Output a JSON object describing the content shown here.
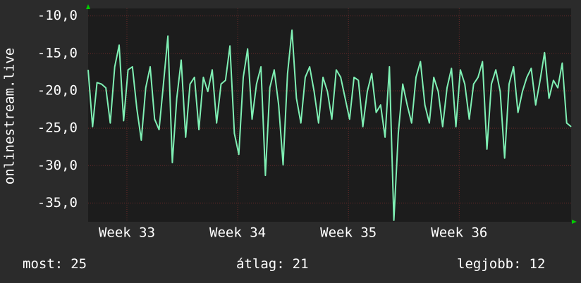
{
  "chart_data": {
    "type": "line",
    "y_label": "onlinestream.live",
    "color": "#7ff0b4",
    "grid": true,
    "xlim": [
      32.65,
      37.01
    ],
    "xticks": [
      {
        "value": 33,
        "label": "Week 33"
      },
      {
        "value": 34,
        "label": "Week 34"
      },
      {
        "value": 35,
        "label": "Week 35"
      },
      {
        "value": 36,
        "label": "Week 36"
      }
    ],
    "ylim": [
      -37.5,
      -9
    ],
    "yticks": [
      {
        "value": -10,
        "label": "-10,0"
      },
      {
        "value": -15,
        "label": "-15,0"
      },
      {
        "value": -20,
        "label": "-20,0"
      },
      {
        "value": -25,
        "label": "-25,0"
      },
      {
        "value": -30,
        "label": "-30,0"
      },
      {
        "value": -35,
        "label": "-35,0"
      }
    ],
    "x": [
      32.65,
      32.69,
      32.73,
      32.77,
      32.81,
      32.85,
      32.89,
      32.93,
      32.97,
      33.01,
      33.05,
      33.09,
      33.13,
      33.17,
      33.21,
      33.25,
      33.29,
      33.33,
      33.37,
      33.41,
      33.45,
      33.49,
      33.53,
      33.57,
      33.61,
      33.65,
      33.69,
      33.73,
      33.77,
      33.81,
      33.85,
      33.89,
      33.93,
      33.97,
      34.01,
      34.05,
      34.09,
      34.13,
      34.17,
      34.21,
      34.25,
      34.29,
      34.33,
      34.37,
      34.41,
      34.45,
      34.49,
      34.53,
      34.57,
      34.61,
      34.65,
      34.69,
      34.73,
      34.77,
      34.81,
      34.85,
      34.89,
      34.93,
      34.97,
      35.01,
      35.05,
      35.09,
      35.13,
      35.17,
      35.21,
      35.25,
      35.29,
      35.33,
      35.37,
      35.41,
      35.45,
      35.49,
      35.53,
      35.57,
      35.61,
      35.65,
      35.69,
      35.73,
      35.77,
      35.81,
      35.85,
      35.89,
      35.93,
      35.97,
      36.01,
      36.05,
      36.09,
      36.13,
      36.17,
      36.21,
      36.25,
      36.29,
      36.33,
      36.37,
      36.41,
      36.45,
      36.49,
      36.53,
      36.57,
      36.61,
      36.65,
      36.69,
      36.73,
      36.77,
      36.81,
      36.85,
      36.89,
      36.93,
      36.97,
      37.01
    ],
    "values": [
      -17.2,
      -24.8,
      -18.9,
      -19.1,
      -19.6,
      -24.3,
      -16.8,
      -13.9,
      -24.0,
      -17.2,
      -16.8,
      -22.4,
      -26.6,
      -19.6,
      -16.8,
      -23.8,
      -25.2,
      -19.1,
      -12.7,
      -29.6,
      -21.0,
      -15.9,
      -26.2,
      -19.1,
      -18.2,
      -25.2,
      -18.2,
      -20.1,
      -17.2,
      -24.3,
      -19.1,
      -18.6,
      -14.0,
      -25.7,
      -28.5,
      -18.2,
      -14.4,
      -23.8,
      -19.1,
      -16.8,
      -31.3,
      -19.6,
      -17.2,
      -21.9,
      -29.9,
      -17.7,
      -11.9,
      -21.0,
      -24.3,
      -18.2,
      -16.8,
      -20.1,
      -24.3,
      -18.2,
      -20.1,
      -23.8,
      -17.2,
      -18.2,
      -21.0,
      -23.8,
      -18.2,
      -18.6,
      -24.8,
      -20.1,
      -17.7,
      -22.9,
      -21.9,
      -26.2,
      -16.8,
      -37.3,
      -25.7,
      -19.1,
      -21.9,
      -24.3,
      -18.2,
      -16.1,
      -21.9,
      -24.3,
      -18.2,
      -20.1,
      -24.8,
      -19.6,
      -17.0,
      -24.8,
      -17.2,
      -19.1,
      -23.8,
      -19.1,
      -18.2,
      -16.1,
      -27.8,
      -19.1,
      -17.2,
      -20.1,
      -29.0,
      -19.1,
      -16.8,
      -22.9,
      -20.1,
      -18.2,
      -17.0,
      -21.9,
      -18.6,
      -14.9,
      -21.0,
      -18.6,
      -19.6,
      -16.3,
      -24.3,
      -24.8
    ],
    "stats": [
      {
        "label": "most:",
        "value": 25
      },
      {
        "label": "átlag:",
        "value": 21
      },
      {
        "label": "legjobb:",
        "value": 12
      }
    ]
  }
}
